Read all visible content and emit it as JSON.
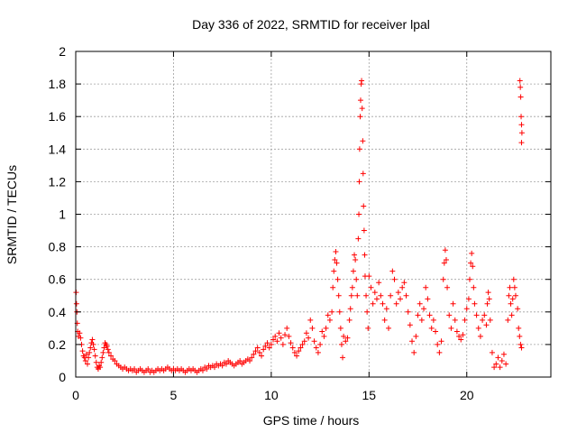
{
  "chart_data": {
    "type": "scatter",
    "title": "Day 336 of 2022, SRMTID for receiver lpal",
    "xlabel": "GPS time / hours",
    "ylabel": "SRMTID / TECUs",
    "xlim": [
      0,
      24.3
    ],
    "ylim": [
      0,
      2
    ],
    "xticks": [
      0,
      5,
      10,
      15,
      20
    ],
    "xtick_labels": [
      "0",
      "5",
      "10",
      "15",
      "20"
    ],
    "yticks": [
      0,
      0.2,
      0.4,
      0.6,
      0.8,
      1,
      1.2,
      1.4,
      1.6,
      1.8,
      2
    ],
    "ytick_labels": [
      "0",
      "0.2",
      "0.4",
      "0.6",
      "0.8",
      "1",
      "1.2",
      "1.4",
      "1.6",
      "1.8",
      "2"
    ],
    "grid": true,
    "marker": "+",
    "color": "#ff0000",
    "series": [
      {
        "name": "SRMTID",
        "points": [
          [
            0.02,
            0.52
          ],
          [
            0.04,
            0.45
          ],
          [
            0.06,
            0.4
          ],
          [
            0.08,
            0.33
          ],
          [
            0.1,
            0.28
          ],
          [
            0.14,
            0.25
          ],
          [
            0.2,
            0.27
          ],
          [
            0.25,
            0.24
          ],
          [
            0.3,
            0.2
          ],
          [
            0.35,
            0.16
          ],
          [
            0.4,
            0.13
          ],
          [
            0.45,
            0.12
          ],
          [
            0.5,
            0.1
          ],
          [
            0.55,
            0.14
          ],
          [
            0.6,
            0.08
          ],
          [
            0.65,
            0.12
          ],
          [
            0.7,
            0.15
          ],
          [
            0.75,
            0.18
          ],
          [
            0.8,
            0.21
          ],
          [
            0.85,
            0.23
          ],
          [
            0.9,
            0.2
          ],
          [
            0.95,
            0.17
          ],
          [
            1.0,
            0.13
          ],
          [
            1.05,
            0.09
          ],
          [
            1.1,
            0.06
          ],
          [
            1.15,
            0.05
          ],
          [
            1.2,
            0.07
          ],
          [
            1.25,
            0.06
          ],
          [
            1.3,
            0.09
          ],
          [
            1.35,
            0.12
          ],
          [
            1.4,
            0.15
          ],
          [
            1.45,
            0.18
          ],
          [
            1.5,
            0.21
          ],
          [
            1.55,
            0.2
          ],
          [
            1.6,
            0.19
          ],
          [
            1.65,
            0.17
          ],
          [
            1.7,
            0.15
          ],
          [
            1.8,
            0.13
          ],
          [
            1.9,
            0.11
          ],
          [
            2.0,
            0.1
          ],
          [
            2.1,
            0.08
          ],
          [
            2.2,
            0.07
          ],
          [
            2.3,
            0.06
          ],
          [
            2.4,
            0.05
          ],
          [
            2.5,
            0.06
          ],
          [
            2.6,
            0.05
          ],
          [
            2.7,
            0.04
          ],
          [
            2.8,
            0.05
          ],
          [
            2.9,
            0.04
          ],
          [
            3.0,
            0.05
          ],
          [
            3.1,
            0.03
          ],
          [
            3.2,
            0.04
          ],
          [
            3.3,
            0.05
          ],
          [
            3.4,
            0.04
          ],
          [
            3.5,
            0.03
          ],
          [
            3.6,
            0.04
          ],
          [
            3.7,
            0.05
          ],
          [
            3.8,
            0.03
          ],
          [
            3.9,
            0.04
          ],
          [
            4.0,
            0.03
          ],
          [
            4.1,
            0.04
          ],
          [
            4.2,
            0.05
          ],
          [
            4.3,
            0.04
          ],
          [
            4.4,
            0.05
          ],
          [
            4.5,
            0.04
          ],
          [
            4.6,
            0.05
          ],
          [
            4.7,
            0.06
          ],
          [
            4.8,
            0.05
          ],
          [
            4.9,
            0.04
          ],
          [
            5.0,
            0.05
          ],
          [
            5.1,
            0.04
          ],
          [
            5.2,
            0.05
          ],
          [
            5.3,
            0.04
          ],
          [
            5.4,
            0.05
          ],
          [
            5.5,
            0.04
          ],
          [
            5.6,
            0.03
          ],
          [
            5.7,
            0.04
          ],
          [
            5.8,
            0.05
          ],
          [
            5.9,
            0.04
          ],
          [
            6.0,
            0.05
          ],
          [
            6.1,
            0.04
          ],
          [
            6.2,
            0.03
          ],
          [
            6.3,
            0.04
          ],
          [
            6.4,
            0.05
          ],
          [
            6.5,
            0.04
          ],
          [
            6.6,
            0.06
          ],
          [
            6.7,
            0.05
          ],
          [
            6.8,
            0.07
          ],
          [
            6.9,
            0.06
          ],
          [
            7.0,
            0.07
          ],
          [
            7.1,
            0.06
          ],
          [
            7.2,
            0.08
          ],
          [
            7.3,
            0.07
          ],
          [
            7.4,
            0.08
          ],
          [
            7.5,
            0.07
          ],
          [
            7.6,
            0.09
          ],
          [
            7.7,
            0.08
          ],
          [
            7.8,
            0.1
          ],
          [
            7.9,
            0.09
          ],
          [
            8.0,
            0.08
          ],
          [
            8.1,
            0.07
          ],
          [
            8.2,
            0.08
          ],
          [
            8.3,
            0.09
          ],
          [
            8.4,
            0.1
          ],
          [
            8.5,
            0.08
          ],
          [
            8.6,
            0.09
          ],
          [
            8.7,
            0.1
          ],
          [
            8.8,
            0.11
          ],
          [
            8.9,
            0.1
          ],
          [
            9.0,
            0.12
          ],
          [
            9.1,
            0.14
          ],
          [
            9.2,
            0.16
          ],
          [
            9.3,
            0.18
          ],
          [
            9.4,
            0.15
          ],
          [
            9.5,
            0.13
          ],
          [
            9.6,
            0.17
          ],
          [
            9.7,
            0.19
          ],
          [
            9.8,
            0.21
          ],
          [
            9.9,
            0.18
          ],
          [
            10.0,
            0.2
          ],
          [
            10.1,
            0.23
          ],
          [
            10.2,
            0.25
          ],
          [
            10.3,
            0.22
          ],
          [
            10.4,
            0.27
          ],
          [
            10.5,
            0.24
          ],
          [
            10.6,
            0.2
          ],
          [
            10.7,
            0.26
          ],
          [
            10.8,
            0.3
          ],
          [
            10.9,
            0.25
          ],
          [
            11.0,
            0.21
          ],
          [
            11.1,
            0.18
          ],
          [
            11.2,
            0.15
          ],
          [
            11.3,
            0.13
          ],
          [
            11.4,
            0.16
          ],
          [
            11.5,
            0.18
          ],
          [
            11.6,
            0.2
          ],
          [
            11.7,
            0.22
          ],
          [
            11.8,
            0.27
          ],
          [
            11.9,
            0.24
          ],
          [
            12.0,
            0.35
          ],
          [
            12.1,
            0.3
          ],
          [
            12.2,
            0.22
          ],
          [
            12.3,
            0.18
          ],
          [
            12.4,
            0.15
          ],
          [
            12.5,
            0.2
          ],
          [
            12.6,
            0.28
          ],
          [
            12.7,
            0.25
          ],
          [
            12.8,
            0.3
          ],
          [
            12.9,
            0.38
          ],
          [
            13.0,
            0.35
          ],
          [
            13.1,
            0.4
          ],
          [
            13.15,
            0.55
          ],
          [
            13.2,
            0.65
          ],
          [
            13.25,
            0.72
          ],
          [
            13.3,
            0.77
          ],
          [
            13.35,
            0.7
          ],
          [
            13.4,
            0.6
          ],
          [
            13.45,
            0.5
          ],
          [
            13.5,
            0.4
          ],
          [
            13.55,
            0.3
          ],
          [
            13.6,
            0.2
          ],
          [
            13.65,
            0.12
          ],
          [
            13.7,
            0.25
          ],
          [
            13.8,
            0.22
          ],
          [
            13.9,
            0.24
          ],
          [
            14.0,
            0.35
          ],
          [
            14.05,
            0.42
          ],
          [
            14.1,
            0.5
          ],
          [
            14.15,
            0.55
          ],
          [
            14.2,
            0.65
          ],
          [
            14.25,
            0.75
          ],
          [
            14.3,
            0.72
          ],
          [
            14.35,
            0.6
          ],
          [
            14.4,
            0.5
          ],
          [
            14.45,
            0.85
          ],
          [
            14.48,
            1.0
          ],
          [
            14.5,
            1.2
          ],
          [
            14.52,
            1.4
          ],
          [
            14.55,
            1.6
          ],
          [
            14.57,
            1.7
          ],
          [
            14.6,
            1.8
          ],
          [
            14.62,
            1.82
          ],
          [
            14.65,
            1.65
          ],
          [
            14.68,
            1.45
          ],
          [
            14.7,
            1.25
          ],
          [
            14.72,
            1.05
          ],
          [
            14.75,
            0.9
          ],
          [
            14.78,
            0.75
          ],
          [
            14.8,
            0.62
          ],
          [
            14.85,
            0.5
          ],
          [
            14.9,
            0.4
          ],
          [
            14.95,
            0.3
          ],
          [
            15.0,
            0.62
          ],
          [
            15.1,
            0.55
          ],
          [
            15.2,
            0.45
          ],
          [
            15.3,
            0.52
          ],
          [
            15.4,
            0.48
          ],
          [
            15.5,
            0.58
          ],
          [
            15.6,
            0.5
          ],
          [
            15.7,
            0.45
          ],
          [
            15.8,
            0.35
          ],
          [
            15.9,
            0.42
          ],
          [
            16.0,
            0.3
          ],
          [
            16.1,
            0.5
          ],
          [
            16.2,
            0.65
          ],
          [
            16.3,
            0.6
          ],
          [
            16.4,
            0.45
          ],
          [
            16.5,
            0.52
          ],
          [
            16.6,
            0.48
          ],
          [
            16.7,
            0.55
          ],
          [
            16.8,
            0.58
          ],
          [
            16.9,
            0.5
          ],
          [
            17.0,
            0.4
          ],
          [
            17.1,
            0.32
          ],
          [
            17.2,
            0.22
          ],
          [
            17.3,
            0.15
          ],
          [
            17.4,
            0.25
          ],
          [
            17.5,
            0.38
          ],
          [
            17.6,
            0.45
          ],
          [
            17.7,
            0.35
          ],
          [
            17.8,
            0.42
          ],
          [
            17.9,
            0.55
          ],
          [
            18.0,
            0.48
          ],
          [
            18.1,
            0.38
          ],
          [
            18.2,
            0.3
          ],
          [
            18.3,
            0.35
          ],
          [
            18.4,
            0.28
          ],
          [
            18.5,
            0.2
          ],
          [
            18.6,
            0.15
          ],
          [
            18.7,
            0.22
          ],
          [
            18.8,
            0.6
          ],
          [
            18.85,
            0.7
          ],
          [
            18.9,
            0.78
          ],
          [
            18.95,
            0.72
          ],
          [
            19.0,
            0.55
          ],
          [
            19.1,
            0.38
          ],
          [
            19.2,
            0.3
          ],
          [
            19.3,
            0.45
          ],
          [
            19.4,
            0.35
          ],
          [
            19.5,
            0.28
          ],
          [
            19.6,
            0.25
          ],
          [
            19.7,
            0.23
          ],
          [
            19.8,
            0.26
          ],
          [
            19.9,
            0.35
          ],
          [
            20.0,
            0.42
          ],
          [
            20.1,
            0.48
          ],
          [
            20.15,
            0.6
          ],
          [
            20.2,
            0.7
          ],
          [
            20.25,
            0.76
          ],
          [
            20.3,
            0.68
          ],
          [
            20.35,
            0.55
          ],
          [
            20.4,
            0.45
          ],
          [
            20.5,
            0.38
          ],
          [
            20.6,
            0.3
          ],
          [
            20.7,
            0.25
          ],
          [
            20.8,
            0.35
          ],
          [
            20.9,
            0.38
          ],
          [
            21.0,
            0.32
          ],
          [
            21.05,
            0.45
          ],
          [
            21.1,
            0.52
          ],
          [
            21.15,
            0.48
          ],
          [
            21.2,
            0.35
          ],
          [
            21.3,
            0.15
          ],
          [
            21.4,
            0.06
          ],
          [
            21.5,
            0.08
          ],
          [
            21.6,
            0.12
          ],
          [
            21.7,
            0.06
          ],
          [
            21.8,
            0.1
          ],
          [
            21.9,
            0.14
          ],
          [
            22.0,
            0.08
          ],
          [
            22.1,
            0.35
          ],
          [
            22.15,
            0.5
          ],
          [
            22.2,
            0.55
          ],
          [
            22.25,
            0.45
          ],
          [
            22.3,
            0.38
          ],
          [
            22.35,
            0.48
          ],
          [
            22.4,
            0.6
          ],
          [
            22.45,
            0.55
          ],
          [
            22.5,
            0.5
          ],
          [
            22.6,
            0.42
          ],
          [
            22.65,
            0.3
          ],
          [
            22.7,
            0.25
          ],
          [
            22.75,
            0.2
          ],
          [
            22.8,
            0.18
          ],
          [
            22.72,
            1.82
          ],
          [
            22.74,
            1.78
          ],
          [
            22.76,
            1.72
          ],
          [
            22.78,
            1.6
          ],
          [
            22.8,
            1.55
          ],
          [
            22.82,
            1.5
          ],
          [
            22.8,
            1.44
          ]
        ]
      }
    ]
  }
}
